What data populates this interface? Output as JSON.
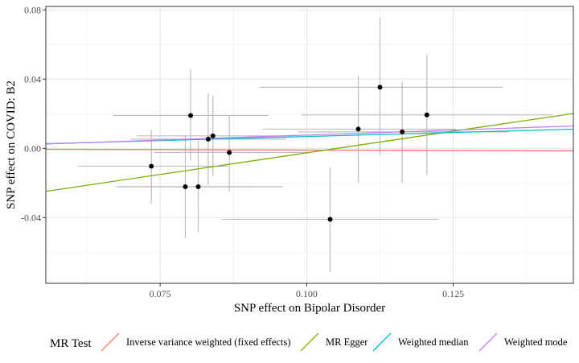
{
  "chart_data": {
    "type": "scatter",
    "title": "",
    "xlabel": "SNP effect on Bipolar Disorder",
    "ylabel": "SNP effect on COVID: B2",
    "xlim": [
      0.0555,
      0.1455
    ],
    "ylim": [
      -0.078,
      0.082
    ],
    "x_ticks": [
      0.075,
      0.1,
      0.125
    ],
    "x_tick_labels": [
      "0.075",
      "0.100",
      "0.125"
    ],
    "y_ticks": [
      -0.04,
      0.0,
      0.04,
      0.08
    ],
    "y_tick_labels": [
      "-0.04",
      "0.00",
      "0.04",
      "0.08"
    ],
    "grid": true,
    "legend_position": "bottom",
    "points": [
      {
        "x": 0.0735,
        "y": -0.0103,
        "x_lo": 0.061,
        "x_hi": 0.0865,
        "y_lo": -0.0318,
        "y_hi": 0.0104
      },
      {
        "x": 0.0793,
        "y": -0.0222,
        "x_lo": 0.0675,
        "x_hi": 0.0912,
        "y_lo": -0.052,
        "y_hi": 0.0075
      },
      {
        "x": 0.0802,
        "y": 0.019,
        "x_lo": 0.067,
        "x_hi": 0.0935,
        "y_lo": -0.007,
        "y_hi": 0.0458
      },
      {
        "x": 0.0815,
        "y": -0.0222,
        "x_lo": 0.068,
        "x_hi": 0.096,
        "y_lo": -0.0485,
        "y_hi": 0.0045
      },
      {
        "x": 0.0832,
        "y": 0.0053,
        "x_lo": 0.07,
        "x_hi": 0.0965,
        "y_lo": -0.021,
        "y_hi": 0.032
      },
      {
        "x": 0.084,
        "y": 0.0072,
        "x_lo": 0.071,
        "x_hi": 0.0975,
        "y_lo": -0.0162,
        "y_hi": 0.0302
      },
      {
        "x": 0.0868,
        "y": -0.0024,
        "x_lo": 0.074,
        "x_hi": 0.1005,
        "y_lo": -0.025,
        "y_hi": 0.019
      },
      {
        "x": 0.104,
        "y": -0.041,
        "x_lo": 0.0855,
        "x_hi": 0.1225,
        "y_lo": -0.0715,
        "y_hi": -0.011
      },
      {
        "x": 0.1088,
        "y": 0.0111,
        "x_lo": 0.0925,
        "x_hi": 0.1255,
        "y_lo": -0.02,
        "y_hi": 0.0418
      },
      {
        "x": 0.1125,
        "y": 0.0353,
        "x_lo": 0.092,
        "x_hi": 0.1335,
        "y_lo": -0.004,
        "y_hi": 0.0755
      },
      {
        "x": 0.1163,
        "y": 0.0095,
        "x_lo": 0.0985,
        "x_hi": 0.1345,
        "y_lo": -0.02,
        "y_hi": 0.0385
      },
      {
        "x": 0.1205,
        "y": 0.0193,
        "x_lo": 0.099,
        "x_hi": 0.142,
        "y_lo": -0.0155,
        "y_hi": 0.054
      }
    ],
    "lines": [
      {
        "name": "Inverse variance weighted (fixed effects)",
        "color": "#F8766D",
        "intercept": 0.0,
        "slope": -0.01
      },
      {
        "name": "MR Egger",
        "color": "#7CAE00",
        "intercept": -0.0526,
        "slope": 0.5
      },
      {
        "name": "Weighted median",
        "color": "#00BFC4",
        "intercept": -0.0025,
        "slope": 0.0933
      },
      {
        "name": "Weighted mode",
        "color": "#C77CFF",
        "intercept": -0.0039,
        "slope": 0.1156
      }
    ]
  },
  "legend": {
    "title": "MR Test",
    "items": [
      {
        "label": "Inverse variance weighted (fixed effects)",
        "color": "#F8766D"
      },
      {
        "label": "MR Egger",
        "color": "#7CAE00"
      },
      {
        "label": "Weighted median",
        "color": "#00BFC4"
      },
      {
        "label": "Weighted mode",
        "color": "#C77CFF"
      }
    ]
  }
}
